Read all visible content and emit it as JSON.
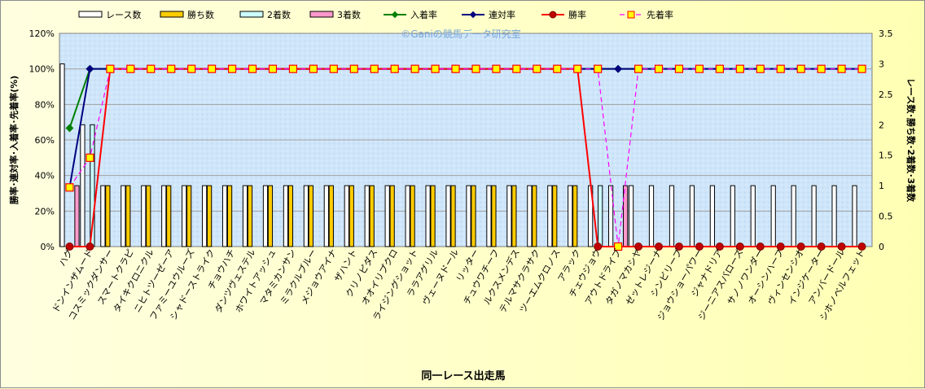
{
  "chart_data": {
    "type": "bar",
    "watermark": "©Ganiの競馬データ研究室",
    "xlabel": "同一レース出走馬",
    "ylabel_left": "勝率･連対率･入着率･先着率(%)",
    "ylabel_right": "レース数･勝ち数･2着数･3着数",
    "y_left_ticks": [
      "0%",
      "20%",
      "40%",
      "60%",
      "80%",
      "100%",
      "120%"
    ],
    "y_left_range": [
      0,
      120
    ],
    "y_right_ticks": [
      "0",
      "0.5",
      "1",
      "1.5",
      "2",
      "2.5",
      "3",
      "3.5"
    ],
    "y_right_range": [
      0,
      3.5
    ],
    "categories": [
      "ハグ",
      "ドンインザムード",
      "コスミックダンサー",
      "スマートクラピ",
      "タイキクロニクル",
      "ニヒトツーゼーア",
      "ファミーユウルーズ",
      "シャドーストライク",
      "チョウハチ",
      "ダンツヴェステル",
      "ホワイトアッシュ",
      "マタミカンサン",
      "ミラクルブルー",
      "メジョウアイナ",
      "ザハント",
      "クリノピダス",
      "オオイリプクロ",
      "ライジングショット",
      "ララアグリル",
      "ヴェーヌドール",
      "リッター",
      "チュウワチーフ",
      "ルクスメンデス",
      "テルマサクラサク",
      "ツーエムクロノス",
      "アラック",
      "チェウジョウ",
      "アウトドライブ",
      "タガノマカシヤ",
      "ゼットレジーナ",
      "シンビリーブ",
      "ジョウショーパワー",
      "ジャナドリア",
      "ジーニアスバローズ",
      "サノノワンダー",
      "オーシンハーフ",
      "ヴィンセンシオ",
      "インジケーター",
      "アンバードール",
      "シホノベルフェット"
    ],
    "series": [
      {
        "name": "レース数",
        "axis": "right",
        "color": "#ffffff",
        "values": [
          3,
          2,
          1,
          1,
          1,
          1,
          1,
          1,
          1,
          1,
          1,
          1,
          1,
          1,
          1,
          1,
          1,
          1,
          1,
          1,
          1,
          1,
          1,
          1,
          1,
          1,
          1,
          1,
          1,
          1,
          1,
          1,
          1,
          1,
          1,
          1,
          1,
          1,
          1,
          1
        ]
      },
      {
        "name": "勝ち数",
        "axis": "right",
        "color": "#ffcc00",
        "values": [
          0,
          0,
          1,
          1,
          1,
          1,
          1,
          1,
          1,
          1,
          1,
          1,
          1,
          1,
          1,
          1,
          1,
          1,
          1,
          1,
          1,
          1,
          1,
          1,
          1,
          1,
          0,
          0,
          0,
          0,
          0,
          0,
          0,
          0,
          0,
          0,
          0,
          0,
          0,
          0
        ]
      },
      {
        "name": "2着数",
        "axis": "right",
        "color": "#ccffff",
        "values": [
          0,
          2,
          0,
          0,
          0,
          0,
          0,
          0,
          0,
          0,
          0,
          0,
          0,
          0,
          0,
          0,
          0,
          0,
          0,
          0,
          0,
          0,
          0,
          0,
          0,
          0,
          1,
          0,
          0,
          0,
          0,
          0,
          0,
          0,
          0,
          0,
          0,
          0,
          0,
          0
        ]
      },
      {
        "name": "3着数",
        "axis": "right",
        "color": "#ff99cc",
        "values": [
          1,
          0,
          0,
          0,
          0,
          0,
          0,
          0,
          0,
          0,
          0,
          0,
          0,
          0,
          0,
          0,
          0,
          0,
          0,
          0,
          0,
          0,
          0,
          0,
          0,
          0,
          0,
          1,
          0,
          0,
          0,
          0,
          0,
          0,
          0,
          0,
          0,
          0,
          0,
          0
        ]
      },
      {
        "name": "入着率",
        "axis": "left",
        "color": "#008000",
        "values": [
          66.7,
          100,
          100,
          100,
          100,
          100,
          100,
          100,
          100,
          100,
          100,
          100,
          100,
          100,
          100,
          100,
          100,
          100,
          100,
          100,
          100,
          100,
          100,
          100,
          100,
          100,
          100,
          100,
          100,
          100,
          100,
          100,
          100,
          100,
          100,
          100,
          100,
          100,
          100,
          100
        ]
      },
      {
        "name": "連対率",
        "axis": "left",
        "color": "#000080",
        "values": [
          33.3,
          100,
          100,
          100,
          100,
          100,
          100,
          100,
          100,
          100,
          100,
          100,
          100,
          100,
          100,
          100,
          100,
          100,
          100,
          100,
          100,
          100,
          100,
          100,
          100,
          100,
          100,
          100,
          100,
          100,
          100,
          100,
          100,
          100,
          100,
          100,
          100,
          100,
          100,
          100
        ]
      },
      {
        "name": "勝率",
        "axis": "left",
        "color": "#ff0000",
        "values": [
          0,
          0,
          100,
          100,
          100,
          100,
          100,
          100,
          100,
          100,
          100,
          100,
          100,
          100,
          100,
          100,
          100,
          100,
          100,
          100,
          100,
          100,
          100,
          100,
          100,
          100,
          0,
          0,
          0,
          0,
          0,
          0,
          0,
          0,
          0,
          0,
          0,
          0,
          0,
          0
        ]
      },
      {
        "name": "先着率",
        "axis": "left",
        "color": "#ff00ff",
        "values": [
          33.3,
          50,
          100,
          100,
          100,
          100,
          100,
          100,
          100,
          100,
          100,
          100,
          100,
          100,
          100,
          100,
          100,
          100,
          100,
          100,
          100,
          100,
          100,
          100,
          100,
          100,
          100,
          0,
          100,
          100,
          100,
          100,
          100,
          100,
          100,
          100,
          100,
          100,
          100,
          100
        ]
      }
    ]
  }
}
